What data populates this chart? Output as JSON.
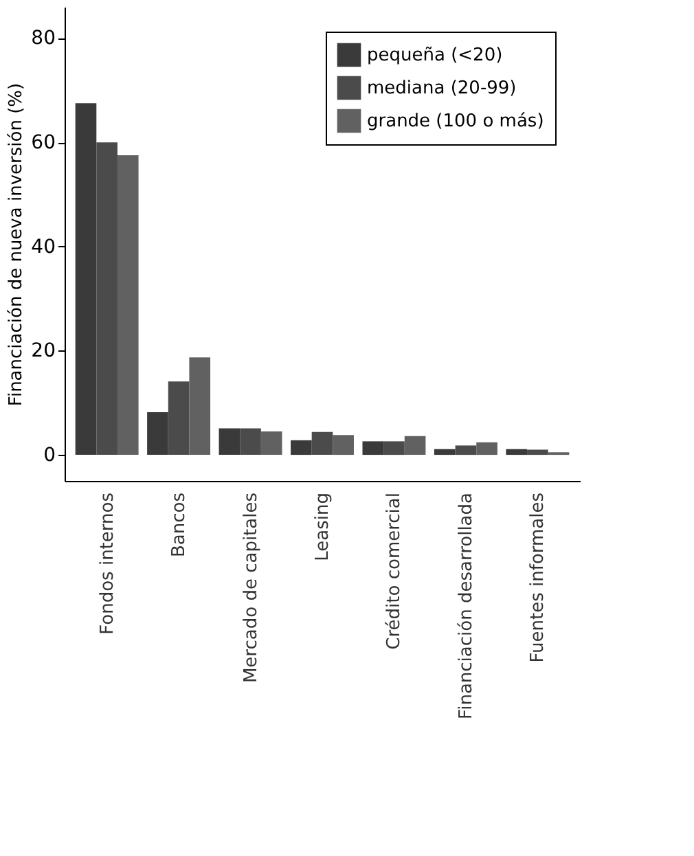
{
  "chart_data": {
    "type": "bar",
    "ylabel": "Financiación de nueva inversión (%)",
    "categories": [
      "Fondos internos",
      "Bancos",
      "Mercado de capitales",
      "Leasing",
      "Crédito comercial",
      "Financiación desarrollada",
      "Fuentes informales"
    ],
    "series": [
      {
        "name": "pequeña (<20)",
        "color": "#3a3a3a",
        "values": [
          67.5,
          8.2,
          5.1,
          2.8,
          2.6,
          1.1,
          1.1
        ]
      },
      {
        "name": "mediana (20-99)",
        "color": "#4b4b4b",
        "values": [
          60,
          14.1,
          5.1,
          4.4,
          2.6,
          1.8,
          1.0
        ]
      },
      {
        "name": "grande (100 o más)",
        "color": "#616161",
        "values": [
          57.5,
          18.7,
          4.5,
          3.8,
          3.6,
          2.4,
          0.5
        ]
      }
    ],
    "ylim": [
      -5,
      86
    ],
    "yticks": [
      0,
      20,
      40,
      60,
      80
    ],
    "grid": false,
    "legend": "top right"
  }
}
